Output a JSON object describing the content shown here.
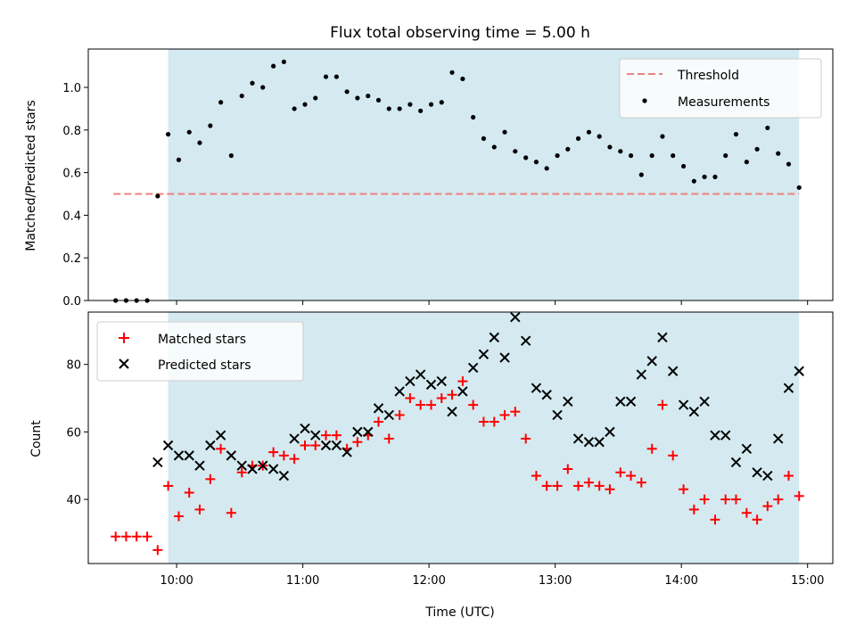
{
  "chart_data": [
    {
      "type": "scatter",
      "title": "Flux total observing time = 5.00 h",
      "xlabel": "",
      "ylabel": "Matched/Predicted stars",
      "ylim": [
        0,
        1.18
      ],
      "xlim_hours": [
        9.3,
        15.2
      ],
      "yticks": [
        0.0,
        0.2,
        0.4,
        0.6,
        0.8,
        1.0
      ],
      "ytick_labels": [
        "0.0",
        "0.2",
        "0.4",
        "0.6",
        "0.8",
        "1.0"
      ],
      "legend_position": "top-right",
      "shaded_interval_hours": [
        9.933,
        14.933
      ],
      "shade_color": "#d4eaf0",
      "threshold": {
        "name": "Threshold",
        "value": 0.5,
        "x_from": 9.5,
        "x_to": 14.933,
        "color": "#f08080",
        "style": "dashed"
      },
      "series": [
        {
          "name": "Measurements",
          "color": "#000000",
          "marker": "dot",
          "x": [
            9.517,
            9.6,
            9.683,
            9.767,
            9.85,
            9.933,
            10.017,
            10.1,
            10.183,
            10.267,
            10.35,
            10.433,
            10.517,
            10.6,
            10.683,
            10.767,
            10.85,
            10.933,
            11.017,
            11.1,
            11.183,
            11.267,
            11.35,
            11.433,
            11.517,
            11.6,
            11.683,
            11.767,
            11.85,
            11.933,
            12.017,
            12.1,
            12.183,
            12.267,
            12.35,
            12.433,
            12.517,
            12.6,
            12.683,
            12.767,
            12.85,
            12.933,
            13.017,
            13.1,
            13.183,
            13.267,
            13.35,
            13.433,
            13.517,
            13.6,
            13.683,
            13.767,
            13.85,
            13.933,
            14.017,
            14.1,
            14.183,
            14.267,
            14.35,
            14.433,
            14.517,
            14.6,
            14.683,
            14.767,
            14.85,
            14.933
          ],
          "y": [
            0.0,
            0.0,
            0.0,
            0.0,
            0.49,
            0.78,
            0.66,
            0.79,
            0.74,
            0.82,
            0.93,
            0.68,
            0.96,
            1.02,
            1.0,
            1.1,
            1.12,
            0.9,
            0.92,
            0.95,
            1.05,
            1.05,
            0.98,
            0.95,
            0.96,
            0.94,
            0.9,
            0.9,
            0.92,
            0.89,
            0.92,
            0.93,
            1.07,
            1.04,
            0.86,
            0.76,
            0.72,
            0.79,
            0.7,
            0.67,
            0.65,
            0.62,
            0.68,
            0.71,
            0.76,
            0.79,
            0.77,
            0.72,
            0.7,
            0.68,
            0.59,
            0.68,
            0.77,
            0.68,
            0.63,
            0.56,
            0.58,
            0.58,
            0.68,
            0.78,
            0.65,
            0.71,
            0.81,
            0.69,
            0.64,
            0.53
          ]
        }
      ]
    },
    {
      "type": "scatter",
      "title": "",
      "xlabel": "Time (UTC)",
      "ylabel": "Count",
      "ylim": [
        21,
        95.5
      ],
      "xlim_hours": [
        9.3,
        15.2
      ],
      "yticks": [
        40,
        60,
        80
      ],
      "ytick_labels": [
        "40",
        "60",
        "80"
      ],
      "xticks_hours": [
        10,
        11,
        12,
        13,
        14,
        15
      ],
      "xtick_labels": [
        "10:00",
        "11:00",
        "12:00",
        "13:00",
        "14:00",
        "15:00"
      ],
      "legend_position": "top-left",
      "shaded_interval_hours": [
        9.933,
        14.933
      ],
      "shade_color": "#d4eaf0",
      "series": [
        {
          "name": "Matched stars",
          "color": "#ff0000",
          "marker": "plus",
          "x": [
            9.517,
            9.6,
            9.683,
            9.767,
            9.85,
            9.933,
            10.017,
            10.1,
            10.183,
            10.267,
            10.35,
            10.433,
            10.517,
            10.6,
            10.683,
            10.767,
            10.85,
            10.933,
            11.017,
            11.1,
            11.183,
            11.267,
            11.35,
            11.433,
            11.517,
            11.6,
            11.683,
            11.767,
            11.85,
            11.933,
            12.017,
            12.1,
            12.183,
            12.267,
            12.35,
            12.433,
            12.517,
            12.6,
            12.683,
            12.767,
            12.85,
            12.933,
            13.017,
            13.1,
            13.183,
            13.267,
            13.35,
            13.433,
            13.517,
            13.6,
            13.683,
            13.767,
            13.85,
            13.933,
            14.017,
            14.1,
            14.183,
            14.267,
            14.35,
            14.433,
            14.517,
            14.6,
            14.683,
            14.767,
            14.85,
            14.933
          ],
          "y": [
            29,
            29,
            29,
            29,
            25,
            44,
            35,
            42,
            37,
            46,
            55,
            36,
            48,
            50,
            50,
            54,
            53,
            52,
            56,
            56,
            59,
            59,
            55,
            57,
            59,
            63,
            58,
            65,
            70,
            68,
            68,
            70,
            71,
            75,
            68,
            63,
            63,
            65,
            66,
            58,
            47,
            44,
            44,
            49,
            44,
            45,
            44,
            43,
            48,
            47,
            45,
            55,
            68,
            53,
            43,
            37,
            40,
            34,
            40,
            40,
            36,
            34,
            38,
            40,
            47,
            41
          ]
        },
        {
          "name": "Predicted stars",
          "color": "#000000",
          "marker": "x",
          "x": [
            9.85,
            9.933,
            10.017,
            10.1,
            10.183,
            10.267,
            10.35,
            10.433,
            10.517,
            10.6,
            10.683,
            10.767,
            10.85,
            10.933,
            11.017,
            11.1,
            11.183,
            11.267,
            11.35,
            11.433,
            11.517,
            11.6,
            11.683,
            11.767,
            11.85,
            11.933,
            12.017,
            12.1,
            12.183,
            12.267,
            12.35,
            12.433,
            12.517,
            12.6,
            12.683,
            12.767,
            12.85,
            12.933,
            13.017,
            13.1,
            13.183,
            13.267,
            13.35,
            13.433,
            13.517,
            13.6,
            13.683,
            13.767,
            13.85,
            13.933,
            14.017,
            14.1,
            14.183,
            14.267,
            14.35,
            14.433,
            14.517,
            14.6,
            14.683,
            14.767,
            14.85,
            14.933
          ],
          "y": [
            51,
            56,
            53,
            53,
            50,
            56,
            59,
            53,
            50,
            49,
            50,
            49,
            47,
            58,
            61,
            59,
            56,
            56,
            54,
            60,
            60,
            67,
            65,
            72,
            75,
            77,
            74,
            75,
            66,
            72,
            79,
            83,
            88,
            82,
            94,
            87,
            73,
            71,
            65,
            69,
            58,
            57,
            57,
            60,
            69,
            69,
            77,
            81,
            88,
            78,
            68,
            66,
            69,
            59,
            59,
            51,
            55,
            48,
            47,
            58,
            73,
            78
          ]
        }
      ]
    }
  ]
}
